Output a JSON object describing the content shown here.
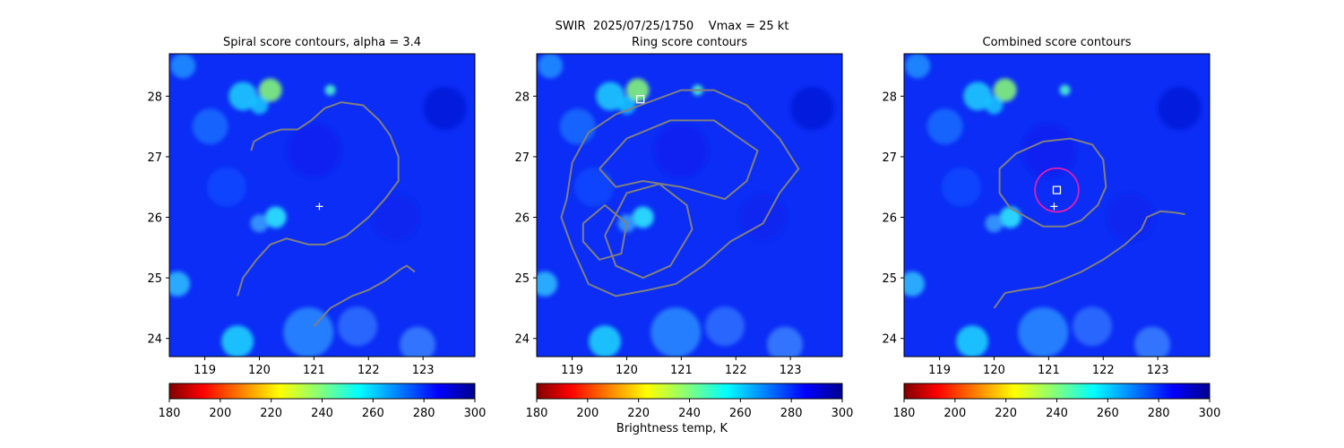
{
  "figure": {
    "suptitle": "SWIR  2025/07/25/1750    Vmax = 25 kt",
    "colorbar_label": "Brightness temp, K"
  },
  "chart_data": [
    {
      "type": "heatmap",
      "title": "Spiral score contours, alpha =  3.4",
      "colormap": "jet",
      "xlim": [
        118.35,
        123.95
      ],
      "ylim": [
        23.7,
        28.7
      ],
      "x_ticks": [
        "119",
        "120",
        "121",
        "122",
        "123"
      ],
      "y_ticks": [
        "24",
        "25",
        "26",
        "27",
        "28"
      ],
      "colorbar_ticks": [
        "180",
        "200",
        "220",
        "240",
        "260",
        "280",
        "300"
      ],
      "colorbar_range": [
        180,
        300
      ],
      "markers": [
        {
          "kind": "plus",
          "x": 121.1,
          "y": 26.18
        }
      ],
      "contours": [
        [
          [
            119.85,
            27.1
          ],
          [
            119.9,
            27.25
          ],
          [
            120.15,
            27.38
          ],
          [
            120.4,
            27.45
          ],
          [
            120.7,
            27.45
          ],
          [
            120.95,
            27.6
          ],
          [
            121.2,
            27.8
          ],
          [
            121.5,
            27.9
          ],
          [
            121.9,
            27.85
          ],
          [
            122.2,
            27.6
          ],
          [
            122.4,
            27.35
          ],
          [
            122.55,
            27.0
          ],
          [
            122.55,
            26.6
          ],
          [
            122.3,
            26.3
          ],
          [
            122.0,
            26.0
          ],
          [
            121.6,
            25.7
          ],
          [
            121.2,
            25.55
          ],
          [
            120.9,
            25.55
          ],
          [
            120.5,
            25.65
          ],
          [
            120.2,
            25.55
          ],
          [
            119.95,
            25.3
          ],
          [
            119.7,
            25.0
          ],
          [
            119.6,
            24.7
          ]
        ],
        [
          [
            121.0,
            24.2
          ],
          [
            121.3,
            24.5
          ],
          [
            121.7,
            24.7
          ],
          [
            122.0,
            24.8
          ],
          [
            122.3,
            24.95
          ],
          [
            122.6,
            25.15
          ],
          [
            122.7,
            25.2
          ],
          [
            122.85,
            25.1
          ]
        ]
      ]
    },
    {
      "type": "heatmap",
      "title": "Ring score contours",
      "colormap": "jet",
      "xlim": [
        118.35,
        123.95
      ],
      "ylim": [
        23.7,
        28.7
      ],
      "x_ticks": [
        "119",
        "120",
        "121",
        "122",
        "123"
      ],
      "y_ticks": [
        "24",
        "25",
        "26",
        "27",
        "28"
      ],
      "colorbar_ticks": [
        "180",
        "200",
        "220",
        "240",
        "260",
        "280",
        "300"
      ],
      "colorbar_range": [
        180,
        300
      ],
      "markers": [
        {
          "kind": "square",
          "x": 120.25,
          "y": 27.95
        }
      ],
      "contours": [
        [
          [
            118.9,
            26.3
          ],
          [
            119.0,
            26.9
          ],
          [
            119.3,
            27.4
          ],
          [
            119.8,
            27.7
          ],
          [
            120.4,
            27.9
          ],
          [
            121.0,
            28.1
          ],
          [
            121.6,
            28.1
          ],
          [
            122.2,
            27.85
          ],
          [
            122.8,
            27.3
          ],
          [
            123.15,
            26.8
          ],
          [
            122.8,
            26.4
          ],
          [
            122.5,
            25.9
          ],
          [
            121.9,
            25.6
          ],
          [
            121.4,
            25.2
          ],
          [
            120.9,
            24.9
          ],
          [
            120.4,
            24.8
          ],
          [
            119.8,
            24.7
          ],
          [
            119.3,
            24.9
          ],
          [
            119.0,
            25.5
          ],
          [
            118.8,
            26.0
          ],
          [
            118.9,
            26.3
          ]
        ],
        [
          [
            119.5,
            26.8
          ],
          [
            120.0,
            27.3
          ],
          [
            120.8,
            27.6
          ],
          [
            121.6,
            27.6
          ],
          [
            122.4,
            27.1
          ],
          [
            122.2,
            26.6
          ],
          [
            121.8,
            26.3
          ],
          [
            121.0,
            26.5
          ],
          [
            120.3,
            26.6
          ],
          [
            119.8,
            26.5
          ],
          [
            119.5,
            26.8
          ]
        ],
        [
          [
            119.6,
            25.7
          ],
          [
            120.0,
            26.4
          ],
          [
            120.6,
            26.55
          ],
          [
            121.1,
            26.2
          ],
          [
            121.2,
            25.8
          ],
          [
            120.8,
            25.2
          ],
          [
            120.3,
            25.0
          ],
          [
            119.8,
            25.2
          ],
          [
            119.6,
            25.7
          ]
        ],
        [
          [
            119.2,
            25.9
          ],
          [
            119.6,
            26.2
          ],
          [
            120.0,
            25.9
          ],
          [
            119.9,
            25.4
          ],
          [
            119.5,
            25.3
          ],
          [
            119.2,
            25.6
          ],
          [
            119.2,
            25.9
          ]
        ]
      ]
    },
    {
      "type": "heatmap",
      "title": "Combined score contours",
      "colormap": "jet",
      "xlim": [
        118.35,
        123.95
      ],
      "ylim": [
        23.7,
        28.7
      ],
      "x_ticks": [
        "119",
        "120",
        "121",
        "122",
        "123"
      ],
      "y_ticks": [
        "24",
        "25",
        "26",
        "27",
        "28"
      ],
      "colorbar_ticks": [
        "180",
        "200",
        "220",
        "240",
        "260",
        "280",
        "300"
      ],
      "colorbar_range": [
        180,
        300
      ],
      "markers": [
        {
          "kind": "plus",
          "x": 121.1,
          "y": 26.18
        },
        {
          "kind": "square",
          "x": 121.15,
          "y": 26.45
        },
        {
          "kind": "circle",
          "x": 121.15,
          "y": 26.45,
          "r_deg": 0.4
        }
      ],
      "contours": [
        [
          [
            120.3,
            26.15
          ],
          [
            120.1,
            26.4
          ],
          [
            120.1,
            26.8
          ],
          [
            120.4,
            27.05
          ],
          [
            120.9,
            27.25
          ],
          [
            121.4,
            27.3
          ],
          [
            121.8,
            27.2
          ],
          [
            122.0,
            26.95
          ],
          [
            122.05,
            26.5
          ],
          [
            121.9,
            26.2
          ],
          [
            121.6,
            25.95
          ],
          [
            121.3,
            25.85
          ],
          [
            120.9,
            25.85
          ],
          [
            120.6,
            26.0
          ],
          [
            120.3,
            26.15
          ]
        ],
        [
          [
            120.0,
            24.5
          ],
          [
            120.2,
            24.75
          ],
          [
            120.5,
            24.8
          ],
          [
            120.9,
            24.85
          ],
          [
            121.2,
            24.95
          ],
          [
            121.6,
            25.1
          ],
          [
            122.0,
            25.3
          ],
          [
            122.4,
            25.55
          ],
          [
            122.7,
            25.8
          ],
          [
            122.8,
            26.0
          ],
          [
            123.05,
            26.1
          ],
          [
            123.3,
            26.08
          ],
          [
            123.5,
            26.05
          ]
        ]
      ]
    }
  ],
  "colors": {
    "contour": "#808080",
    "marker": "#ffffff",
    "circle": "#e020b0"
  }
}
